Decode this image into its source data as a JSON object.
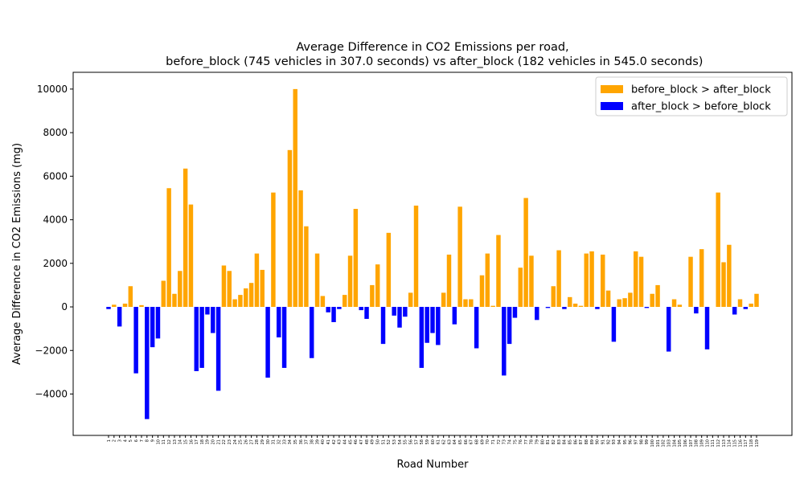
{
  "chart_data": {
    "type": "bar",
    "title": "Average Difference in CO2 Emissions per road,",
    "subtitle": " before_block (745 vehicles in 307.0 seconds) vs after_block (182 vehicles in 545.0 seconds)",
    "x_label": "Road Number",
    "y_label": "Average Difference in CO2 Emissions (mg)",
    "legend_position": "upper right",
    "legend": [
      {
        "name": "before_block > after_block",
        "color": "#ffa500"
      },
      {
        "name": "after_block > before_block",
        "color": "#0000ff"
      }
    ],
    "categories": [
      "1",
      "2",
      "3",
      "4",
      "5",
      "6",
      "7",
      "8",
      "9",
      "10",
      "11",
      "12",
      "13",
      "14",
      "15",
      "16",
      "17",
      "18",
      "19",
      "20",
      "21",
      "22",
      "23",
      "24",
      "25",
      "26",
      "27",
      "28",
      "29",
      "30",
      "31",
      "32",
      "33",
      "34",
      "35",
      "36",
      "37",
      "38",
      "39",
      "40",
      "41",
      "42",
      "43",
      "44",
      "45",
      "46",
      "47",
      "48",
      "49",
      "50",
      "51",
      "52",
      "53",
      "54",
      "55",
      "56",
      "57",
      "58",
      "59",
      "60",
      "61",
      "62",
      "63",
      "64",
      "65",
      "66",
      "67",
      "68",
      "69",
      "70",
      "71",
      "72",
      "73",
      "74",
      "75",
      "76",
      "77",
      "78",
      "79",
      "80",
      "81",
      "82",
      "83",
      "84",
      "85",
      "86",
      "87",
      "88",
      "89",
      "90",
      "91",
      "92",
      "93",
      "94",
      "95",
      "96",
      "97",
      "98",
      "99",
      "100",
      "101",
      "102",
      "103",
      "104",
      "105",
      "106",
      "107",
      "108",
      "109",
      "110",
      "111",
      "112",
      "113",
      "114",
      "115",
      "116",
      "117",
      "118",
      "119"
    ],
    "values": [
      -100,
      100,
      -900,
      150,
      950,
      -3050,
      80,
      -5150,
      -1850,
      -1450,
      1200,
      5450,
      600,
      1650,
      6350,
      4700,
      -2950,
      -2800,
      -350,
      -1200,
      -3850,
      1900,
      1650,
      350,
      550,
      850,
      1100,
      2450,
      1700,
      -3250,
      5250,
      -1400,
      -2800,
      7200,
      10000,
      5350,
      3700,
      -2350,
      2450,
      500,
      -250,
      -700,
      -100,
      550,
      2350,
      4500,
      -150,
      -550,
      1000,
      1950,
      -1700,
      3400,
      -400,
      -950,
      -450,
      650,
      4650,
      -2800,
      -1650,
      -1200,
      -1750,
      650,
      2400,
      -800,
      4600,
      350,
      350,
      -1900,
      1450,
      2450,
      50,
      3300,
      -3150,
      -1700,
      -500,
      1800,
      5000,
      2350,
      -600,
      0,
      -50,
      950,
      2600,
      -100,
      450,
      150,
      50,
      2450,
      2550,
      -100,
      2400,
      750,
      -1600,
      350,
      400,
      650,
      2550,
      2300,
      -50,
      600,
      1000,
      0,
      -2050,
      350,
      100,
      0,
      2300,
      -300,
      2650,
      -1950,
      0,
      5250,
      2050,
      2850,
      -350,
      350,
      -100,
      150,
      600
    ],
    "ylim": [
      -5900,
      10770
    ],
    "yticks": [
      {
        "value": -4000,
        "label": "−4000"
      },
      {
        "value": -2000,
        "label": "−2000"
      },
      0,
      2000,
      4000,
      6000,
      8000,
      10000
    ]
  }
}
